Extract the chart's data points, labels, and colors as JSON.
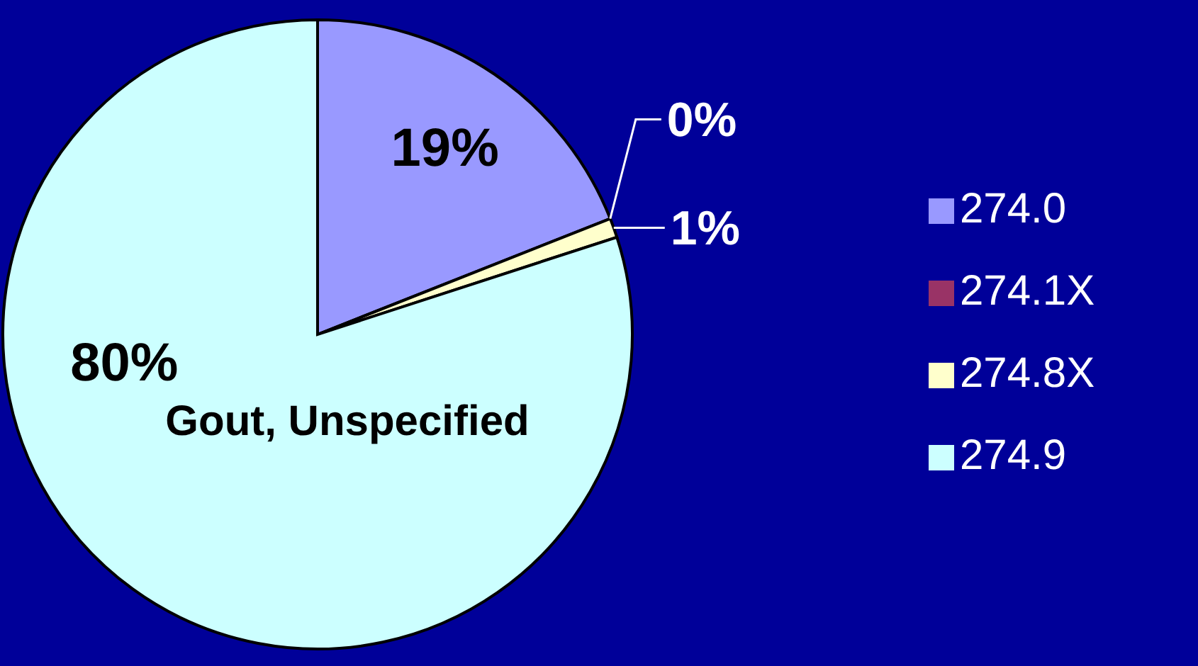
{
  "chart_data": {
    "type": "pie",
    "categories": [
      "274.0",
      "274.1X",
      "274.8X",
      "274.9"
    ],
    "values": [
      19,
      0,
      1,
      80
    ],
    "colors": [
      "#9999ff",
      "#993366",
      "#ffffcc",
      "#ccffff"
    ],
    "value_labels": [
      "19%",
      "0%",
      "1%",
      "80%"
    ],
    "annotations": [
      "Gout, Unspecified"
    ],
    "legend": "right"
  }
}
